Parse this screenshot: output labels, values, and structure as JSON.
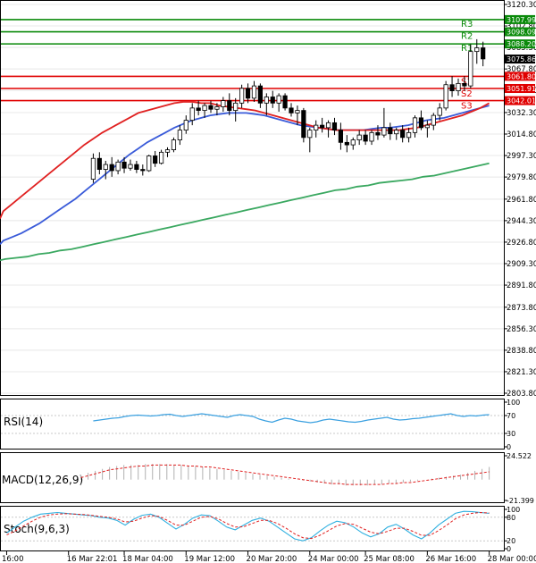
{
  "chart_data": {
    "type": "candlestick",
    "instrument_note": "Index chart with pivot levels and oscillators",
    "colors": {
      "bull": "#16a34a",
      "bear": "#dc2626",
      "resistance": "#0a8a0a",
      "support": "#e00000",
      "ma_fast": "#e02020",
      "ma_mid": "#3a5bd9",
      "ma_slow": "#3aa860",
      "rsi": "#3aa0e0",
      "macd_hist": "#b0b0b0",
      "macd_signal": "#e02020",
      "stoch_k": "#30b0e0",
      "stoch_d": "#e02020",
      "grid": "#e8e8e8",
      "axis": "#000000"
    },
    "price_axis": {
      "ymin": 2803.8,
      "ymax": 3120.3,
      "ticks": [
        "3120.30",
        "3102.80",
        "3085.30",
        "3067.80",
        "3050.30",
        "3032.30",
        "3014.80",
        "2997.30",
        "2979.80",
        "2961.80",
        "2944.30",
        "2926.80",
        "2909.30",
        "2891.80",
        "2873.80",
        "2856.30",
        "2838.80",
        "2821.30",
        "2803.80"
      ]
    },
    "time_axis": {
      "labels": [
        "16:00",
        "16 Mar 22:01",
        "18 Mar 04:00",
        "19 Mar 12:00",
        "20 Mar 20:00",
        "24 Mar 00:00",
        "25 Mar 08:00",
        "26 Mar 16:00",
        "28 Mar 00:00"
      ],
      "label_bars": [
        0,
        10,
        19,
        29,
        39,
        49,
        58,
        68,
        78
      ]
    },
    "levels": [
      {
        "name": "R3",
        "value": 3107.99,
        "value_text": "3107.99",
        "kind": "resistance"
      },
      {
        "name": "R2",
        "value": 3098.09,
        "value_text": "3098.09",
        "kind": "resistance"
      },
      {
        "name": "R1",
        "value": 3088.2,
        "value_text": "3088.20",
        "kind": "resistance"
      },
      {
        "name": "S1",
        "value": 3061.8,
        "value_text": "3061.80",
        "kind": "support"
      },
      {
        "name": "S2",
        "value": 3051.91,
        "value_text": "3051.91",
        "kind": "support"
      },
      {
        "name": "S3",
        "value": 3042.01,
        "value_text": "3042.01",
        "kind": "support"
      }
    ],
    "current_price": {
      "value": 3075.86,
      "value_text": "3075.86"
    },
    "candles": [
      {
        "o": 2978,
        "h": 2999,
        "l": 2975,
        "c": 2995
      },
      {
        "o": 2995,
        "h": 3000,
        "l": 2982,
        "c": 2986
      },
      {
        "o": 2986,
        "h": 2993,
        "l": 2978,
        "c": 2990
      },
      {
        "o": 2990,
        "h": 2996,
        "l": 2980,
        "c": 2985
      },
      {
        "o": 2985,
        "h": 2994,
        "l": 2982,
        "c": 2992
      },
      {
        "o": 2992,
        "h": 2996,
        "l": 2983,
        "c": 2987
      },
      {
        "o": 2987,
        "h": 2994,
        "l": 2985,
        "c": 2990
      },
      {
        "o": 2990,
        "h": 2993,
        "l": 2983,
        "c": 2986
      },
      {
        "o": 2986,
        "h": 2990,
        "l": 2981,
        "c": 2985
      },
      {
        "o": 2985,
        "h": 2998,
        "l": 2984,
        "c": 2997
      },
      {
        "o": 2997,
        "h": 3001,
        "l": 2988,
        "c": 2991
      },
      {
        "o": 2991,
        "h": 3002,
        "l": 2990,
        "c": 3000
      },
      {
        "o": 3000,
        "h": 3004,
        "l": 2996,
        "c": 3002
      },
      {
        "o": 3002,
        "h": 3012,
        "l": 3000,
        "c": 3010
      },
      {
        "o": 3010,
        "h": 3022,
        "l": 3006,
        "c": 3018
      },
      {
        "o": 3018,
        "h": 3030,
        "l": 3015,
        "c": 3026
      },
      {
        "o": 3026,
        "h": 3040,
        "l": 3022,
        "c": 3036
      },
      {
        "o": 3036,
        "h": 3042,
        "l": 3030,
        "c": 3034
      },
      {
        "o": 3034,
        "h": 3040,
        "l": 3028,
        "c": 3038
      },
      {
        "o": 3038,
        "h": 3042,
        "l": 3032,
        "c": 3035
      },
      {
        "o": 3035,
        "h": 3040,
        "l": 3030,
        "c": 3037
      },
      {
        "o": 3037,
        "h": 3045,
        "l": 3033,
        "c": 3042
      },
      {
        "o": 3042,
        "h": 3048,
        "l": 3030,
        "c": 3034
      },
      {
        "o": 3034,
        "h": 3044,
        "l": 3025,
        "c": 3040
      },
      {
        "o": 3040,
        "h": 3055,
        "l": 3036,
        "c": 3052
      },
      {
        "o": 3052,
        "h": 3056,
        "l": 3040,
        "c": 3044
      },
      {
        "o": 3044,
        "h": 3058,
        "l": 3041,
        "c": 3054
      },
      {
        "o": 3054,
        "h": 3056,
        "l": 3036,
        "c": 3040
      },
      {
        "o": 3040,
        "h": 3048,
        "l": 3030,
        "c": 3045
      },
      {
        "o": 3045,
        "h": 3050,
        "l": 3036,
        "c": 3040
      },
      {
        "o": 3040,
        "h": 3048,
        "l": 3033,
        "c": 3046
      },
      {
        "o": 3046,
        "h": 3048,
        "l": 3034,
        "c": 3036
      },
      {
        "o": 3036,
        "h": 3040,
        "l": 3029,
        "c": 3032
      },
      {
        "o": 3032,
        "h": 3038,
        "l": 3022,
        "c": 3034
      },
      {
        "o": 3034,
        "h": 3036,
        "l": 3008,
        "c": 3012
      },
      {
        "o": 3012,
        "h": 3020,
        "l": 3000,
        "c": 3018
      },
      {
        "o": 3018,
        "h": 3026,
        "l": 3012,
        "c": 3022
      },
      {
        "o": 3022,
        "h": 3028,
        "l": 3016,
        "c": 3020
      },
      {
        "o": 3020,
        "h": 3026,
        "l": 3012,
        "c": 3024
      },
      {
        "o": 3024,
        "h": 3028,
        "l": 3014,
        "c": 3018
      },
      {
        "o": 3018,
        "h": 3024,
        "l": 3002,
        "c": 3008
      },
      {
        "o": 3008,
        "h": 3014,
        "l": 3000,
        "c": 3006
      },
      {
        "o": 3006,
        "h": 3012,
        "l": 3002,
        "c": 3010
      },
      {
        "o": 3010,
        "h": 3018,
        "l": 3006,
        "c": 3014
      },
      {
        "o": 3014,
        "h": 3018,
        "l": 3006,
        "c": 3009
      },
      {
        "o": 3009,
        "h": 3018,
        "l": 3006,
        "c": 3016
      },
      {
        "o": 3016,
        "h": 3022,
        "l": 3010,
        "c": 3014
      },
      {
        "o": 3014,
        "h": 3036,
        "l": 3012,
        "c": 3020
      },
      {
        "o": 3020,
        "h": 3024,
        "l": 3010,
        "c": 3015
      },
      {
        "o": 3015,
        "h": 3020,
        "l": 3010,
        "c": 3018
      },
      {
        "o": 3018,
        "h": 3022,
        "l": 3008,
        "c": 3012
      },
      {
        "o": 3012,
        "h": 3020,
        "l": 3008,
        "c": 3016
      },
      {
        "o": 3016,
        "h": 3030,
        "l": 3012,
        "c": 3028
      },
      {
        "o": 3028,
        "h": 3034,
        "l": 3018,
        "c": 3020
      },
      {
        "o": 3020,
        "h": 3026,
        "l": 3012,
        "c": 3022
      },
      {
        "o": 3022,
        "h": 3032,
        "l": 3018,
        "c": 3030
      },
      {
        "o": 3030,
        "h": 3040,
        "l": 3026,
        "c": 3036
      },
      {
        "o": 3036,
        "h": 3058,
        "l": 3034,
        "c": 3055
      },
      {
        "o": 3055,
        "h": 3062,
        "l": 3045,
        "c": 3050
      },
      {
        "o": 3050,
        "h": 3060,
        "l": 3046,
        "c": 3056
      },
      {
        "o": 3056,
        "h": 3062,
        "l": 3050,
        "c": 3054
      },
      {
        "o": 3054,
        "h": 3088,
        "l": 3052,
        "c": 3082
      },
      {
        "o": 3082,
        "h": 3092,
        "l": 3072,
        "c": 3085
      },
      {
        "o": 3085,
        "h": 3090,
        "l": 3070,
        "c": 3076
      }
    ],
    "ma_fast": [
      2946,
      2952,
      2958,
      2964,
      2970,
      2976,
      2982,
      2988,
      2994,
      3000,
      3006,
      3011,
      3016,
      3020,
      3024,
      3028,
      3032,
      3034,
      3036,
      3038,
      3040,
      3041,
      3041,
      3040,
      3040,
      3038,
      3037,
      3036,
      3035,
      3034,
      3032,
      3030,
      3028,
      3026,
      3024,
      3022,
      3020,
      3019,
      3018,
      3018,
      3018,
      3018,
      3018,
      3018,
      3018,
      3018,
      3019,
      3020,
      3022,
      3024,
      3026,
      3028,
      3030,
      3033,
      3036,
      3040
    ],
    "ma_mid": [
      2925,
      2928,
      2931,
      2934,
      2938,
      2942,
      2947,
      2952,
      2957,
      2962,
      2968,
      2974,
      2980,
      2986,
      2992,
      2998,
      3003,
      3008,
      3012,
      3016,
      3020,
      3023,
      3026,
      3028,
      3030,
      3031,
      3032,
      3032,
      3032,
      3031,
      3030,
      3028,
      3026,
      3024,
      3022,
      3021,
      3020,
      3019,
      3018,
      3018,
      3018,
      3018,
      3019,
      3020,
      3020,
      3021,
      3022,
      3024,
      3026,
      3027,
      3028,
      3030,
      3032,
      3034,
      3036,
      3038
    ],
    "ma_slow": [
      2912,
      2913,
      2914,
      2915,
      2917,
      2918,
      2920,
      2921,
      2923,
      2925,
      2927,
      2929,
      2931,
      2933,
      2935,
      2937,
      2939,
      2941,
      2943,
      2945,
      2947,
      2949,
      2951,
      2953,
      2955,
      2957,
      2959,
      2961,
      2963,
      2965,
      2967,
      2969,
      2970,
      2972,
      2973,
      2975,
      2976,
      2977,
      2978,
      2980,
      2981,
      2983,
      2985,
      2987,
      2989,
      2991
    ],
    "rsi": {
      "label": "RSI(14)",
      "ticks": [
        "100",
        "70",
        "30",
        "0"
      ],
      "ymin": 0,
      "ymax": 100,
      "values": [
        58,
        60,
        62,
        64,
        65,
        68,
        70,
        71,
        70,
        69,
        70,
        72,
        73,
        70,
        68,
        70,
        72,
        74,
        72,
        70,
        68,
        66,
        70,
        72,
        70,
        68,
        62,
        58,
        55,
        60,
        64,
        62,
        58,
        56,
        54,
        56,
        60,
        62,
        60,
        58,
        56,
        55,
        57,
        60,
        62,
        64,
        66,
        62,
        60,
        61,
        63,
        64,
        66,
        68,
        70,
        72,
        74,
        70,
        68,
        70,
        69,
        71,
        72
      ]
    },
    "macd": {
      "label": "MACD(12,26,9)",
      "ticks": [
        "24.522",
        "-21.399"
      ],
      "ymin": -21.399,
      "ymax": 24.522,
      "hist": [
        5,
        7,
        9,
        11,
        13,
        14,
        15,
        15,
        15,
        16,
        16,
        16,
        16,
        15,
        15,
        14,
        14,
        13,
        12,
        11,
        10,
        9,
        8,
        7,
        6,
        5,
        4,
        3,
        2,
        1,
        0,
        -1,
        -2,
        -3,
        -4,
        -5,
        -5,
        -6,
        -6,
        -6,
        -6,
        -5,
        -5,
        -4,
        -4,
        -3,
        -2,
        -1,
        0,
        1,
        2,
        3,
        4,
        5,
        7,
        9,
        11,
        13
      ],
      "signal": [
        2,
        4,
        6,
        8,
        10,
        11,
        12,
        13,
        14,
        14,
        15,
        15,
        15,
        15,
        15,
        14,
        14,
        13,
        13,
        12,
        11,
        10,
        9,
        8,
        7,
        6,
        5,
        4,
        3,
        2,
        1,
        0,
        -1,
        -2,
        -3,
        -4,
        -4,
        -5,
        -5,
        -5,
        -5,
        -5,
        -5,
        -4,
        -4,
        -3,
        -3,
        -2,
        -1,
        0,
        1,
        2,
        3,
        4,
        5,
        6,
        7,
        8
      ]
    },
    "stoch": {
      "label": "Stoch(9,6,3)",
      "ticks": [
        "100",
        "80",
        "20",
        "0"
      ],
      "ymin": 0,
      "ymax": 100,
      "k": [
        40,
        55,
        70,
        80,
        88,
        90,
        92,
        90,
        88,
        86,
        84,
        80,
        78,
        72,
        60,
        75,
        85,
        88,
        80,
        65,
        50,
        62,
        78,
        86,
        84,
        70,
        55,
        48,
        60,
        72,
        78,
        70,
        55,
        40,
        25,
        20,
        28,
        45,
        60,
        70,
        66,
        55,
        40,
        30,
        38,
        55,
        62,
        50,
        35,
        25,
        40,
        60,
        75,
        90,
        95,
        94,
        92,
        90
      ],
      "d": [
        35,
        45,
        58,
        70,
        80,
        86,
        88,
        89,
        88,
        87,
        85,
        82,
        80,
        76,
        68,
        70,
        78,
        84,
        82,
        72,
        60,
        60,
        70,
        80,
        82,
        76,
        64,
        55,
        56,
        64,
        72,
        72,
        64,
        52,
        38,
        28,
        26,
        34,
        46,
        58,
        64,
        62,
        52,
        42,
        38,
        44,
        52,
        52,
        44,
        34,
        34,
        46,
        60,
        76,
        86,
        90,
        92,
        91
      ]
    }
  }
}
